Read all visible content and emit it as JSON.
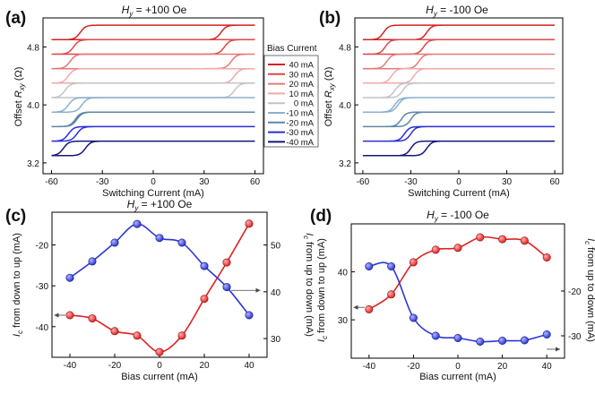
{
  "chart_data": [
    {
      "panel": "(a)",
      "type": "line",
      "title": "H_y = +100 Oe",
      "xlabel": "Switching Current (mA)",
      "ylabel": "Offset R_xy (Ω)",
      "xlim": [
        -65,
        65
      ],
      "ylim": [
        3.05,
        5.2
      ],
      "xticks": [
        "-60",
        "-30",
        "0",
        "30",
        "60"
      ],
      "yticks": [
        "3.2",
        "4.0",
        "4.8"
      ],
      "legend_title": "Bias Current",
      "series": [
        {
          "name": "40 mA",
          "offset": 5.0,
          "color": "#d42222",
          "up_switch": 40,
          "down_switch": 43
        },
        {
          "name": "30 mA",
          "offset": 4.8,
          "color": "#de4848",
          "up_switch": 42,
          "down_switch": 47
        },
        {
          "name": "20 mA",
          "offset": 4.6,
          "color": "#e67878",
          "up_switch": 46,
          "down_switch": 49
        },
        {
          "name": "10 mA",
          "offset": 4.4,
          "color": "#eeaaaa",
          "up_switch": 48,
          "down_switch": 50
        },
        {
          "name": "0 mA",
          "offset": 4.2,
          "color": "#c4c4c4",
          "up_switch": 48,
          "down_switch": 52
        },
        {
          "name": "-10 mA",
          "offset": 4.0,
          "color": "#8ab0d0",
          "up_switch": -42,
          "down_switch": 50
        },
        {
          "name": "-20 mA",
          "offset": 3.8,
          "color": "#5f86a8",
          "up_switch": -45,
          "down_switch": 46
        },
        {
          "name": "-30 mA",
          "offset": 3.6,
          "color": "#2b2fd6",
          "up_switch": -50,
          "down_switch": 45
        },
        {
          "name": "-40 mA",
          "offset": 3.4,
          "color": "#15167a",
          "up_switch": -53,
          "down_switch": 40
        }
      ]
    },
    {
      "panel": "(b)",
      "type": "line",
      "title": "H_y = -100 Oe",
      "xlabel": "Switching Current (mA)",
      "ylabel": "Offset R_xy (Ω)",
      "xlim": [
        -65,
        65
      ],
      "ylim": [
        3.05,
        5.2
      ],
      "xticks": [
        "-60",
        "-30",
        "0",
        "30",
        "60"
      ],
      "yticks": [
        "3.2",
        "4.0",
        "4.8"
      ],
      "series": [
        {
          "name": "40 mA",
          "offset": 5.0,
          "color": "#d42222",
          "up_switch": -20,
          "down_switch": 47
        },
        {
          "name": "30 mA",
          "offset": 4.8,
          "color": "#de4848",
          "up_switch": -22,
          "down_switch": 46
        },
        {
          "name": "20 mA",
          "offset": 4.6,
          "color": "#e67878",
          "up_switch": -25,
          "down_switch": 45
        },
        {
          "name": "10 mA",
          "offset": 4.4,
          "color": "#eeaaaa",
          "up_switch": -28,
          "down_switch": 42
        },
        {
          "name": "0 mA",
          "offset": 4.2,
          "color": "#c4c4c4",
          "up_switch": -35,
          "down_switch": 40
        },
        {
          "name": "-10 mA",
          "offset": 4.0,
          "color": "#8ab0d0",
          "up_switch": -40,
          "down_switch": 38
        },
        {
          "name": "-20 mA",
          "offset": 3.8,
          "color": "#5f86a8",
          "up_switch": -30,
          "down_switch": 36
        },
        {
          "name": "-30 mA",
          "offset": 3.6,
          "color": "#2b2fd6",
          "up_switch": -30,
          "down_switch": 34
        },
        {
          "name": "-40 mA",
          "offset": 3.4,
          "color": "#15167a",
          "up_switch": -20,
          "down_switch": 30
        }
      ]
    },
    {
      "panel": "(c)",
      "type": "scatter",
      "title": "H_y = +100 Oe",
      "xlabel": "Bias current (mA)",
      "ylabel_left": "Ic from down to up (mA)",
      "ylabel_right": "Ic from up to down (mA)",
      "x": [
        -40,
        -30,
        -20,
        -10,
        0,
        10,
        20,
        30,
        40
      ],
      "xlim": [
        -48,
        48
      ],
      "xticks": [
        "-40",
        "-20",
        "0",
        "20",
        "40"
      ],
      "left_axis": {
        "ylim": [
          -47.5,
          -12
        ],
        "ticks": [
          "-40",
          "-30",
          "-20"
        ]
      },
      "right_axis": {
        "ylim": [
          26,
          57
        ],
        "ticks": [
          "30",
          "40",
          "50"
        ]
      },
      "series": [
        {
          "name": "Ic from down to up",
          "axis": "left",
          "color": "#e02020",
          "values": [
            -37.2,
            -38.0,
            -41.1,
            -42.2,
            -46.2,
            -42.2,
            -33.2,
            -24.3,
            -14.8
          ]
        },
        {
          "name": "Ic from up to down",
          "axis": "right",
          "color": "#2a36d6",
          "values": [
            43.0,
            46.5,
            50.5,
            54.5,
            51.5,
            50.5,
            45.5,
            41.0,
            35.0
          ]
        }
      ]
    },
    {
      "panel": "(d)",
      "type": "scatter",
      "title": "H_y = -100 Oe",
      "xlabel": "Bias current (mA)",
      "ylabel_left": "Ic from down to up (mA)",
      "ylabel_right": "Ic from up to down (mA)",
      "x": [
        -40,
        -30,
        -20,
        -10,
        0,
        10,
        20,
        30,
        40
      ],
      "xlim": [
        -48,
        48
      ],
      "xticks": [
        "-40",
        "-20",
        "0",
        "20",
        "40"
      ],
      "left_axis": {
        "ylim": [
          22,
          50
        ],
        "ticks": [
          "30",
          "40"
        ]
      },
      "right_axis": {
        "ylim": [
          -35,
          -5
        ],
        "ticks": [
          "-30",
          "-20"
        ]
      },
      "series": [
        {
          "name": "Ic from down to up",
          "axis": "left",
          "color": "#e02020",
          "values": [
            32.2,
            35.3,
            42.0,
            44.6,
            45.0,
            47.2,
            46.8,
            46.5,
            43.0
          ]
        },
        {
          "name": "Ic from up to down",
          "axis": "right",
          "color": "#2a36d6",
          "values": [
            -14.5,
            -14.5,
            -26.0,
            -30.0,
            -30.5,
            -31.3,
            -31.1,
            -31.0,
            -29.7
          ]
        }
      ]
    }
  ]
}
